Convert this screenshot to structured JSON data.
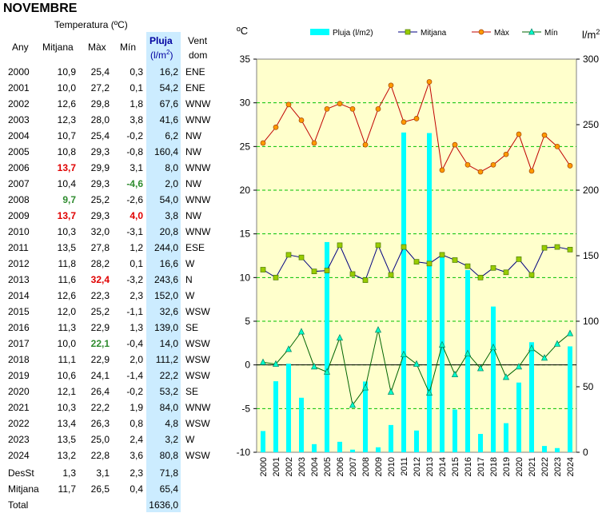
{
  "title": "NOVEMBRE",
  "table": {
    "header_temp": "Temperatura (ºC)",
    "col_any": "Any",
    "col_mitjana": "Mitjana",
    "col_max": "Màx",
    "col_min": "Mín",
    "col_pluja": "Pluja",
    "col_pluja_unit": "(l/m",
    "col_pluja_sup": "2",
    "col_pluja_close": ")",
    "col_vent": "Vent",
    "col_vent2": "dom",
    "rows": [
      {
        "any": "2000",
        "mit": "10,9",
        "max": "25,4",
        "min": "0,3",
        "plu": "16,2",
        "ven": "ENE"
      },
      {
        "any": "2001",
        "mit": "10,0",
        "max": "27,2",
        "min": "0,1",
        "plu": "54,2",
        "ven": "ENE"
      },
      {
        "any": "2002",
        "mit": "12,6",
        "max": "29,8",
        "min": "1,8",
        "plu": "67,6",
        "ven": "WNW"
      },
      {
        "any": "2003",
        "mit": "12,3",
        "max": "28,0",
        "min": "3,8",
        "plu": "41,6",
        "ven": "WNW"
      },
      {
        "any": "2004",
        "mit": "10,7",
        "max": "25,4",
        "min": "-0,2",
        "plu": "6,2",
        "ven": "NW"
      },
      {
        "any": "2005",
        "mit": "10,8",
        "max": "29,3",
        "min": "-0,8",
        "plu": "160,4",
        "ven": "NW"
      },
      {
        "any": "2006",
        "mit": "13,7",
        "max": "29,9",
        "min": "3,1",
        "plu": "8,0",
        "ven": "WNW",
        "mit_hl": "red"
      },
      {
        "any": "2007",
        "mit": "10,4",
        "max": "29,3",
        "min": "-4,6",
        "plu": "2,0",
        "ven": "NW",
        "min_hl": "green"
      },
      {
        "any": "2008",
        "mit": "9,7",
        "max": "25,2",
        "min": "-2,6",
        "plu": "54,0",
        "ven": "WNW",
        "mit_hl": "green"
      },
      {
        "any": "2009",
        "mit": "13,7",
        "max": "29,3",
        "min": "4,0",
        "plu": "3,8",
        "ven": "NW",
        "mit_hl": "red",
        "min_hl": "red"
      },
      {
        "any": "2010",
        "mit": "10,3",
        "max": "32,0",
        "min": "-3,1",
        "plu": "20,8",
        "ven": "WNW"
      },
      {
        "any": "2011",
        "mit": "13,5",
        "max": "27,8",
        "min": "1,2",
        "plu": "244,0",
        "ven": "ESE"
      },
      {
        "any": "2012",
        "mit": "11,8",
        "max": "28,2",
        "min": "0,1",
        "plu": "16,6",
        "ven": "W"
      },
      {
        "any": "2013",
        "mit": "11,6",
        "max": "32,4",
        "min": "-3,2",
        "plu": "243,6",
        "ven": "N",
        "max_hl": "red"
      },
      {
        "any": "2014",
        "mit": "12,6",
        "max": "22,3",
        "min": "2,3",
        "plu": "152,0",
        "ven": "W"
      },
      {
        "any": "2015",
        "mit": "12,0",
        "max": "25,2",
        "min": "-1,1",
        "plu": "32,6",
        "ven": "WSW"
      },
      {
        "any": "2016",
        "mit": "11,3",
        "max": "22,9",
        "min": "1,3",
        "plu": "139,0",
        "ven": "SE"
      },
      {
        "any": "2017",
        "mit": "10,0",
        "max": "22,1",
        "min": "-0,4",
        "plu": "14,0",
        "ven": "WSW",
        "max_hl": "green"
      },
      {
        "any": "2018",
        "mit": "11,1",
        "max": "22,9",
        "min": "2,0",
        "plu": "111,2",
        "ven": "WSW"
      },
      {
        "any": "2019",
        "mit": "10,6",
        "max": "24,1",
        "min": "-1,4",
        "plu": "22,2",
        "ven": "WSW"
      },
      {
        "any": "2020",
        "mit": "12,1",
        "max": "26,4",
        "min": "-0,2",
        "plu": "53,2",
        "ven": "SE"
      },
      {
        "any": "2021",
        "mit": "10,3",
        "max": "22,2",
        "min": "1,9",
        "plu": "84,0",
        "ven": "WNW"
      },
      {
        "any": "2022",
        "mit": "13,4",
        "max": "26,3",
        "min": "0,8",
        "plu": "4,8",
        "ven": "WSW"
      },
      {
        "any": "2023",
        "mit": "13,5",
        "max": "25,0",
        "min": "2,4",
        "plu": "3,2",
        "ven": "W"
      },
      {
        "any": "2024",
        "mit": "13,2",
        "max": "22,8",
        "min": "3,6",
        "plu": "80,8",
        "ven": "WSW"
      }
    ],
    "summary": [
      {
        "any": "DesSt",
        "mit": "1,3",
        "max": "3,1",
        "min": "2,3",
        "plu": "71,8"
      },
      {
        "any": "Mitjana",
        "mit": "11,7",
        "max": "26,5",
        "min": "0,4",
        "plu": "65,4"
      },
      {
        "any": "Total",
        "mit": "",
        "max": "",
        "min": "",
        "plu": "1636,0"
      }
    ]
  },
  "colors": {
    "pluja": "#00ffff",
    "mitjana_line": "#000080",
    "mitjana_marker": "#99cc00",
    "max_line": "#c00000",
    "max_marker": "#ff9900",
    "min_line": "#006400",
    "min_marker": "#00ffcc",
    "plot_bg": "#ffffcc",
    "grid": "#00c000",
    "red_hl": "#e00000",
    "green_hl": "#2e8b2e"
  },
  "chart_data": {
    "type": "bar+line",
    "categories": [
      "2000",
      "2001",
      "2002",
      "2003",
      "2004",
      "2005",
      "2006",
      "2007",
      "2008",
      "2009",
      "2010",
      "2011",
      "2012",
      "2013",
      "2014",
      "2015",
      "2016",
      "2017",
      "2018",
      "2019",
      "2020",
      "2021",
      "2022",
      "2023",
      "2024"
    ],
    "series": [
      {
        "name": "Pluja (l/m2)",
        "type": "bar",
        "axis": "right",
        "values": [
          16.2,
          54.2,
          67.6,
          41.6,
          6.2,
          160.4,
          8.0,
          2.0,
          54.0,
          3.8,
          20.8,
          244.0,
          16.6,
          243.6,
          152.0,
          32.6,
          139.0,
          14.0,
          111.2,
          22.2,
          53.2,
          84.0,
          4.8,
          3.2,
          80.8
        ]
      },
      {
        "name": "Mitjana",
        "type": "line",
        "axis": "left",
        "values": [
          10.9,
          10.0,
          12.6,
          12.3,
          10.7,
          10.8,
          13.7,
          10.4,
          9.7,
          13.7,
          10.3,
          13.5,
          11.8,
          11.6,
          12.6,
          12.0,
          11.3,
          10.0,
          11.1,
          10.6,
          12.1,
          10.3,
          13.4,
          13.5,
          13.2
        ]
      },
      {
        "name": "Màx",
        "type": "line",
        "axis": "left",
        "values": [
          25.4,
          27.2,
          29.8,
          28.0,
          25.4,
          29.3,
          29.9,
          29.3,
          25.2,
          29.3,
          32.0,
          27.8,
          28.2,
          32.4,
          22.3,
          25.2,
          22.9,
          22.1,
          22.9,
          24.1,
          26.4,
          22.2,
          26.3,
          25.0,
          22.8
        ]
      },
      {
        "name": "Mín",
        "type": "line",
        "axis": "left",
        "values": [
          0.3,
          0.1,
          1.8,
          3.8,
          -0.2,
          -0.8,
          3.1,
          -4.6,
          -2.6,
          4.0,
          -3.1,
          1.2,
          0.1,
          -3.2,
          2.3,
          -1.1,
          1.3,
          -0.4,
          2.0,
          -1.4,
          -0.2,
          1.9,
          0.8,
          2.4,
          3.6
        ]
      }
    ],
    "y_left_label": "ºC",
    "y_right_label_main": "l/m",
    "y_right_label_sup": "2",
    "y_left_range": [
      -10,
      35
    ],
    "y_left_ticks": [
      "-10",
      "-5",
      "0",
      "5",
      "10",
      "15",
      "20",
      "25",
      "30",
      "35"
    ],
    "y_right_range": [
      0,
      300
    ],
    "y_right_ticks": [
      "0",
      "50",
      "100",
      "150",
      "200",
      "250",
      "300"
    ],
    "grid": true,
    "legend_position": "top"
  }
}
